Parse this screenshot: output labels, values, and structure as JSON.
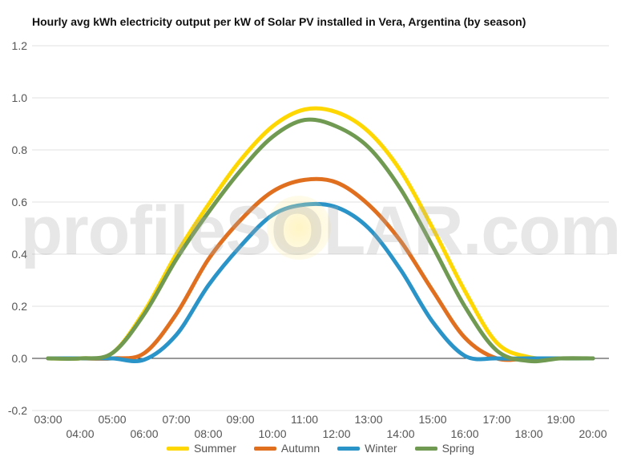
{
  "chart_data": {
    "type": "line",
    "title": "Hourly avg kWh electricity output per kW of Solar PV installed in Vera, Argentina (by season)",
    "xlabel": "",
    "ylabel": "",
    "ylim": [
      -0.2,
      1.2
    ],
    "y_ticks": [
      "1.2",
      "1.0",
      "0.8",
      "0.6",
      "0.4",
      "0.2",
      "0.0",
      "-0.2"
    ],
    "x_ticks_upper": [
      "03:00",
      "05:00",
      "07:00",
      "09:00",
      "11:00",
      "13:00",
      "15:00",
      "17:00",
      "19:00"
    ],
    "x_ticks_lower": [
      "04:00",
      "06:00",
      "08:00",
      "10:00",
      "12:00",
      "14:00",
      "16:00",
      "18:00",
      "20:00"
    ],
    "x": [
      3,
      4,
      5,
      6,
      7,
      8,
      9,
      10,
      11,
      12,
      13,
      14,
      15,
      16,
      17,
      18,
      19,
      20
    ],
    "grid": true,
    "legend_position": "bottom",
    "series": [
      {
        "name": "Summer",
        "color": "#FFD700",
        "values": [
          0,
          0,
          0.02,
          0.18,
          0.4,
          0.59,
          0.76,
          0.89,
          0.955,
          0.945,
          0.87,
          0.72,
          0.5,
          0.26,
          0.06,
          0.005,
          0,
          0
        ]
      },
      {
        "name": "Autumn",
        "color": "#E07020",
        "values": [
          0,
          0,
          0,
          0.02,
          0.17,
          0.38,
          0.53,
          0.64,
          0.685,
          0.675,
          0.59,
          0.45,
          0.26,
          0.08,
          0,
          0,
          0,
          0
        ]
      },
      {
        "name": "Winter",
        "color": "#2A93C8",
        "values": [
          0,
          0,
          0,
          -0.005,
          0.09,
          0.28,
          0.43,
          0.55,
          0.59,
          0.58,
          0.5,
          0.34,
          0.14,
          0.01,
          0,
          0,
          0,
          0
        ]
      },
      {
        "name": "Spring",
        "color": "#709A52",
        "values": [
          0,
          0,
          0.02,
          0.17,
          0.38,
          0.56,
          0.72,
          0.85,
          0.915,
          0.89,
          0.81,
          0.65,
          0.43,
          0.2,
          0.03,
          -0.01,
          0,
          0
        ]
      }
    ]
  },
  "watermark": {
    "text": "profileSOLAR.com"
  }
}
